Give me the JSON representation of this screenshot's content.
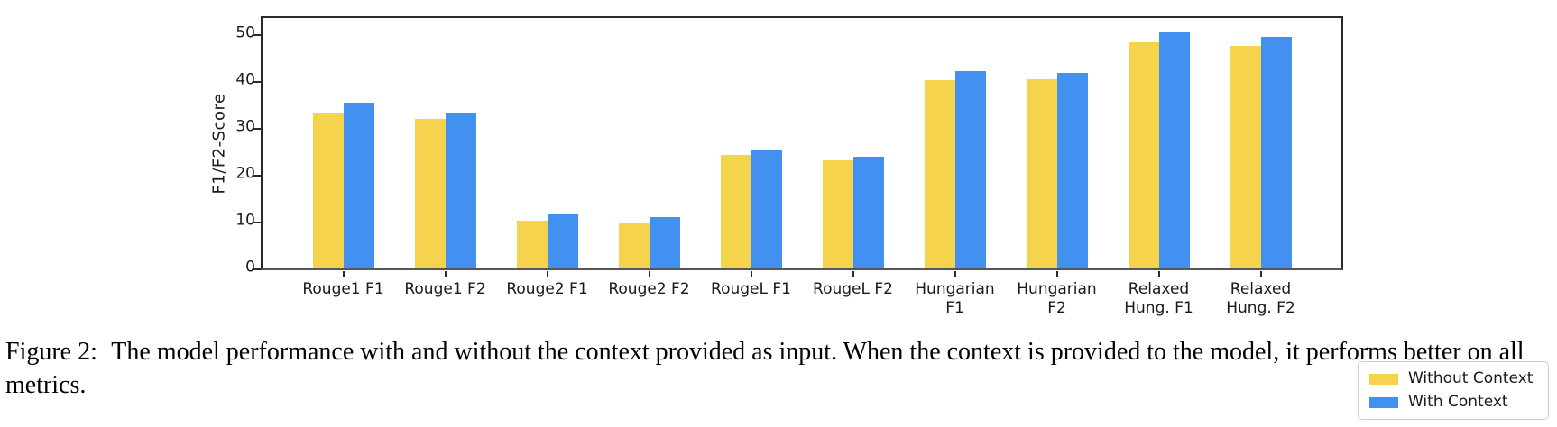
{
  "figure": {
    "caption_label": "Figure 2:",
    "caption_text": "The model performance with and without the context provided as input. When the context is provided to the model, it performs better on all metrics."
  },
  "chart_data": {
    "type": "bar",
    "title": "",
    "xlabel": "",
    "ylabel": "F1/F2-Score",
    "categories": [
      "Rouge1 F1",
      "Rouge1 F2",
      "Rouge2 F1",
      "Rouge2 F2",
      "RougeL F1",
      "RougeL F2",
      "Hungarian\nF1",
      "Hungarian\nF2",
      "Relaxed\nHung. F1",
      "Relaxed\nHung. F2"
    ],
    "series": [
      {
        "name": "Without Context",
        "color": "#F6D34C",
        "values": [
          33.1,
          31.7,
          10.0,
          9.5,
          24.0,
          22.9,
          40.0,
          40.2,
          48.1,
          47.3
        ]
      },
      {
        "name": "With Context",
        "color": "#4290F0",
        "values": [
          35.1,
          33.1,
          11.3,
          10.7,
          25.1,
          23.6,
          41.8,
          41.5,
          50.2,
          49.2
        ]
      }
    ],
    "yticks": [
      0,
      10,
      20,
      30,
      40,
      50
    ],
    "ylim": [
      0,
      53.2
    ],
    "grid": false,
    "legend_position": "lower right",
    "spine_color": "#2a2a2a"
  }
}
